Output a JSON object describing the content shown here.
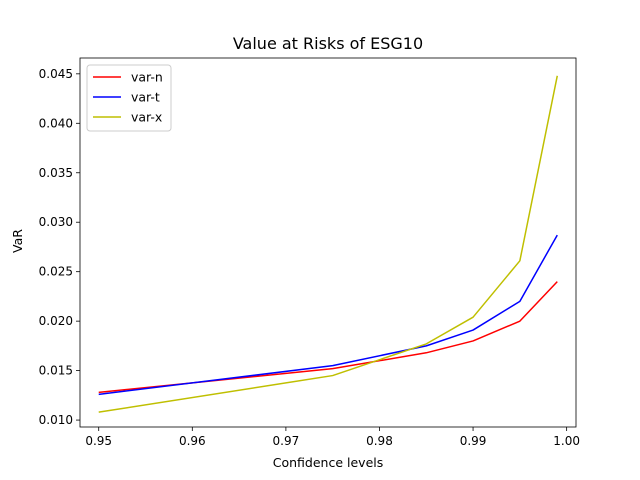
{
  "chart_data": {
    "type": "line",
    "title": "Value at Risks of ESG10",
    "xlabel": "Confidence levels",
    "ylabel": "VaR",
    "xlim": [
      0.948,
      1.001
    ],
    "ylim": [
      0.0093,
      0.0466
    ],
    "xticks": [
      0.95,
      0.96,
      0.97,
      0.98,
      0.99,
      1.0
    ],
    "xtick_labels": [
      "0.95",
      "0.96",
      "0.97",
      "0.98",
      "0.99",
      "1.00"
    ],
    "yticks": [
      0.01,
      0.015,
      0.02,
      0.025,
      0.03,
      0.035,
      0.04,
      0.045
    ],
    "ytick_labels": [
      "0.010",
      "0.015",
      "0.020",
      "0.025",
      "0.030",
      "0.035",
      "0.040",
      "0.045"
    ],
    "grid": false,
    "legend_position": "top-left",
    "x": [
      0.95,
      0.975,
      0.985,
      0.99,
      0.995,
      0.999
    ],
    "series": [
      {
        "name": "var-n",
        "color": "#ff0000",
        "values": [
          0.0128,
          0.0152,
          0.0168,
          0.018,
          0.02,
          0.024
        ]
      },
      {
        "name": "var-t",
        "color": "#0000ff",
        "values": [
          0.0126,
          0.0155,
          0.0175,
          0.0191,
          0.022,
          0.0287
        ]
      },
      {
        "name": "var-x",
        "color": "#bfbf00",
        "values": [
          0.0108,
          0.0145,
          0.0177,
          0.0204,
          0.0261,
          0.0448
        ]
      }
    ]
  }
}
